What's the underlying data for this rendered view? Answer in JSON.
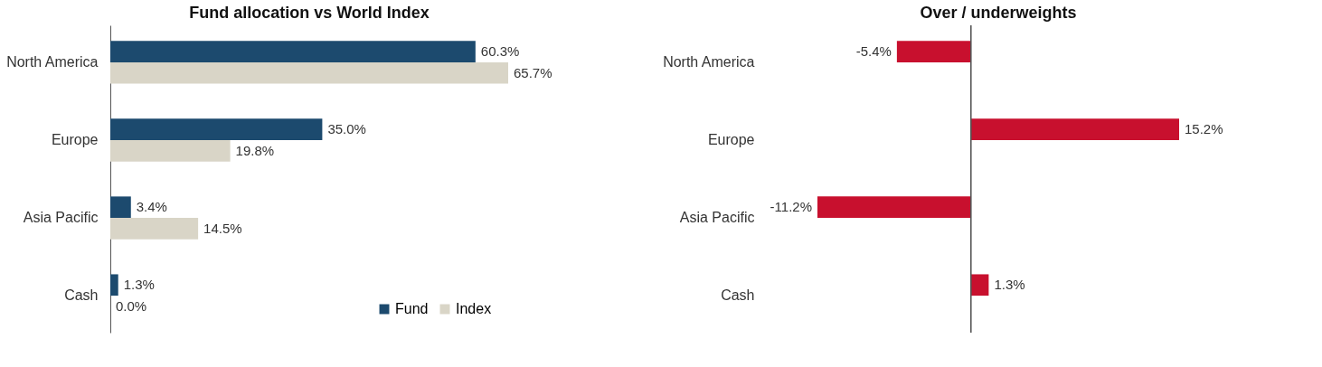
{
  "chart_data": [
    {
      "type": "bar",
      "orientation": "horizontal",
      "title": "Fund allocation vs World Index",
      "categories": [
        "North America",
        "Europe",
        "Asia Pacific",
        "Cash"
      ],
      "legend": "bottom right",
      "data_labels": true,
      "series": [
        {
          "name": "Fund",
          "color": "#1c4a6e",
          "values": [
            60.3,
            35.0,
            3.4,
            1.3
          ],
          "value_labels": [
            "60.3%",
            "35.0%",
            "3.4%",
            "1.3%"
          ]
        },
        {
          "name": "Index",
          "color": "#d9d5c7",
          "values": [
            65.7,
            19.8,
            14.5,
            0.0
          ],
          "value_labels": [
            "65.7%",
            "19.8%",
            "14.5%",
            "0.0%"
          ]
        }
      ]
    },
    {
      "type": "bar",
      "orientation": "horizontal",
      "title": "Over / underweights",
      "categories": [
        "North America",
        "Europe",
        "Asia Pacific",
        "Cash"
      ],
      "data_labels": true,
      "series": [
        {
          "color": "#c8102e",
          "values": [
            -5.4,
            15.2,
            -11.2,
            1.3
          ],
          "value_labels": [
            "-5.4%",
            "15.2%",
            "-11.2%",
            "1.3%"
          ]
        }
      ]
    }
  ]
}
